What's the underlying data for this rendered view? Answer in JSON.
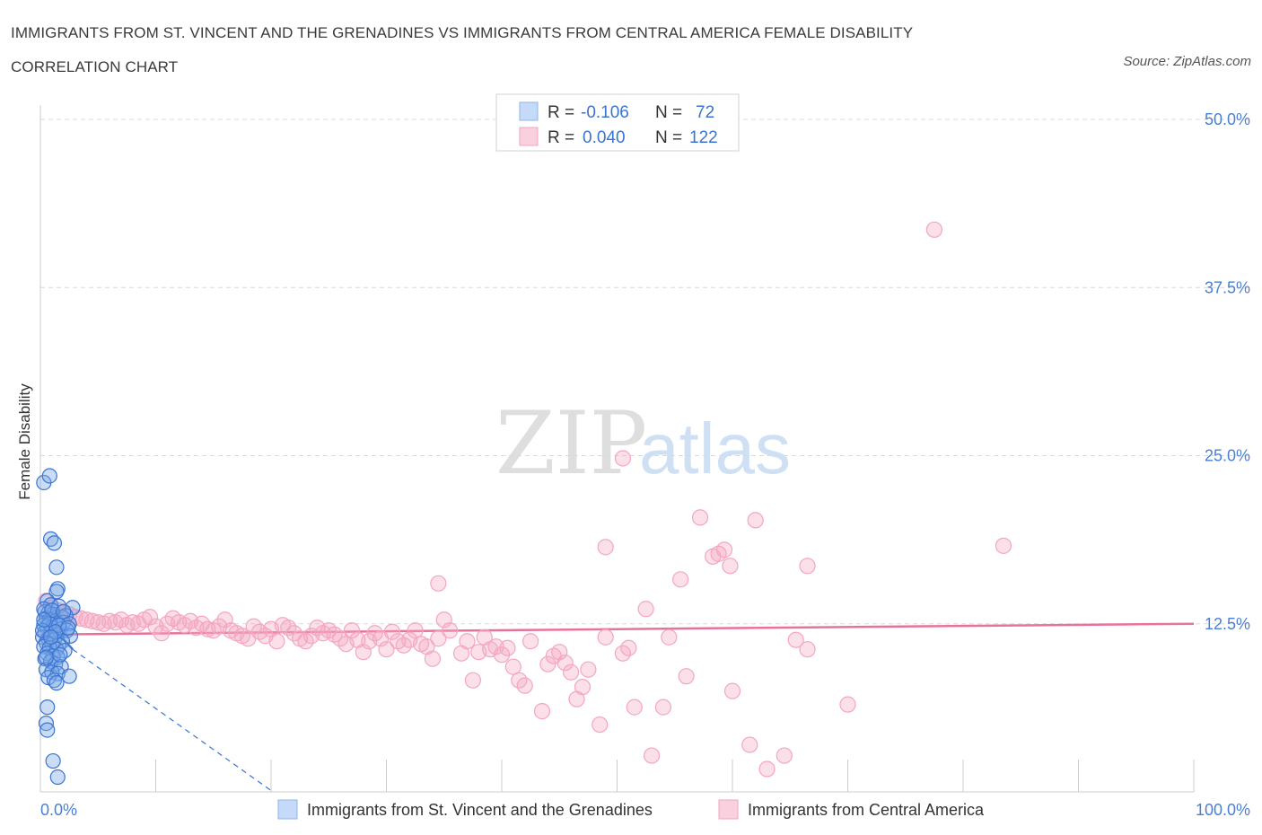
{
  "title": "IMMIGRANTS FROM ST. VINCENT AND THE GRENADINES VS IMMIGRANTS FROM CENTRAL AMERICA FEMALE DISABILITY CORRELATION CHART",
  "source": "Source: ZipAtlas.com",
  "watermark": {
    "zip": "ZIP",
    "atlas": "atlas"
  },
  "legend": {
    "r_label": "R =",
    "n_label": "N =",
    "rows": [
      {
        "r": "-0.106",
        "n": "72",
        "color": "#a9c8f5"
      },
      {
        "r": "0.040",
        "n": "122",
        "color": "#f6b9cc"
      }
    ]
  },
  "chart_data": {
    "type": "scatter",
    "ylabel": "Female Disability",
    "xlim": [
      0,
      100
    ],
    "ylim": [
      0,
      50
    ],
    "x_tick_labels": [
      "0.0%",
      "100.0%"
    ],
    "y_ticks": [
      12.5,
      25.0,
      37.5,
      50.0
    ],
    "y_tick_labels": [
      "12.5%",
      "25.0%",
      "37.5%",
      "50.0%"
    ],
    "grid": "horizontal dashed",
    "series": [
      {
        "name": "Immigrants from St. Vincent and the Grenadines",
        "color": "#7aa7e8",
        "line_color": "#3a74d0",
        "trend": {
          "x": [
            0,
            2.8
          ],
          "y": [
            13.2,
            10.6
          ],
          "dashed_to": [
            20,
            0.1
          ]
        },
        "points": [
          [
            0.3,
            23.0
          ],
          [
            0.8,
            23.5
          ],
          [
            0.9,
            18.8
          ],
          [
            1.2,
            18.5
          ],
          [
            1.4,
            16.7
          ],
          [
            1.5,
            15.1
          ],
          [
            1.4,
            14.9
          ],
          [
            0.6,
            14.2
          ],
          [
            0.9,
            13.9
          ],
          [
            1.6,
            13.8
          ],
          [
            2.8,
            13.7
          ],
          [
            0.4,
            13.4
          ],
          [
            0.7,
            13.3
          ],
          [
            1.1,
            13.2
          ],
          [
            1.8,
            13.0
          ],
          [
            2.2,
            13.1
          ],
          [
            0.5,
            12.9
          ],
          [
            0.8,
            12.8
          ],
          [
            1.3,
            12.7
          ],
          [
            2.0,
            12.6
          ],
          [
            2.5,
            12.5
          ],
          [
            0.3,
            12.4
          ],
          [
            0.6,
            12.3
          ],
          [
            1.0,
            12.2
          ],
          [
            1.7,
            12.1
          ],
          [
            2.3,
            12.0
          ],
          [
            0.4,
            11.9
          ],
          [
            0.9,
            11.8
          ],
          [
            1.5,
            11.7
          ],
          [
            2.6,
            11.6
          ],
          [
            0.2,
            11.5
          ],
          [
            0.7,
            11.4
          ],
          [
            1.2,
            11.3
          ],
          [
            1.9,
            11.2
          ],
          [
            0.5,
            11.1
          ],
          [
            1.0,
            11.0
          ],
          [
            1.6,
            10.9
          ],
          [
            0.3,
            10.8
          ],
          [
            0.8,
            10.7
          ],
          [
            1.4,
            10.6
          ],
          [
            2.1,
            10.5
          ],
          [
            0.6,
            10.3
          ],
          [
            1.1,
            10.1
          ],
          [
            1.5,
            10.0
          ],
          [
            0.4,
            9.9
          ],
          [
            0.9,
            9.7
          ],
          [
            1.3,
            9.5
          ],
          [
            1.8,
            9.3
          ],
          [
            0.5,
            9.1
          ],
          [
            1.0,
            8.9
          ],
          [
            1.5,
            8.8
          ],
          [
            2.5,
            8.6
          ],
          [
            0.7,
            8.5
          ],
          [
            1.2,
            8.3
          ],
          [
            1.4,
            8.1
          ],
          [
            0.6,
            6.3
          ],
          [
            0.5,
            5.1
          ],
          [
            0.6,
            4.6
          ],
          [
            1.1,
            2.3
          ],
          [
            1.5,
            1.1
          ],
          [
            0.3,
            13.6
          ],
          [
            1.0,
            13.5
          ],
          [
            2.0,
            13.4
          ],
          [
            0.8,
            12.5
          ],
          [
            1.6,
            12.4
          ],
          [
            0.2,
            12.0
          ],
          [
            1.3,
            11.9
          ],
          [
            0.9,
            11.5
          ],
          [
            2.4,
            12.2
          ],
          [
            0.5,
            10.0
          ],
          [
            1.7,
            10.2
          ],
          [
            0.3,
            12.8
          ]
        ]
      },
      {
        "name": "Immigrants from Central America",
        "color": "#f4a6bf",
        "line_color": "#e8739a",
        "trend": {
          "x": [
            0,
            100
          ],
          "y": [
            11.7,
            12.5
          ]
        },
        "points": [
          [
            77.5,
            41.8
          ],
          [
            50.5,
            24.8
          ],
          [
            57.2,
            20.4
          ],
          [
            62.0,
            20.2
          ],
          [
            83.5,
            18.3
          ],
          [
            49.0,
            18.2
          ],
          [
            58.3,
            17.5
          ],
          [
            58.8,
            17.7
          ],
          [
            59.3,
            18.0
          ],
          [
            59.8,
            16.8
          ],
          [
            66.5,
            16.8
          ],
          [
            55.5,
            15.8
          ],
          [
            34.5,
            15.5
          ],
          [
            52.5,
            13.6
          ],
          [
            35.0,
            12.8
          ],
          [
            0.5,
            14.2
          ],
          [
            1.0,
            13.7
          ],
          [
            1.5,
            13.5
          ],
          [
            2.0,
            13.3
          ],
          [
            2.5,
            13.2
          ],
          [
            3.0,
            13.0
          ],
          [
            3.5,
            12.9
          ],
          [
            4.0,
            12.8
          ],
          [
            4.5,
            12.7
          ],
          [
            5.0,
            12.6
          ],
          [
            5.5,
            12.5
          ],
          [
            6.0,
            12.7
          ],
          [
            6.5,
            12.6
          ],
          [
            7.0,
            12.8
          ],
          [
            7.5,
            12.4
          ],
          [
            8.0,
            12.6
          ],
          [
            8.5,
            12.5
          ],
          [
            9.0,
            12.8
          ],
          [
            9.5,
            13.0
          ],
          [
            10.0,
            12.3
          ],
          [
            10.5,
            11.8
          ],
          [
            11.0,
            12.5
          ],
          [
            11.5,
            12.9
          ],
          [
            12.0,
            12.6
          ],
          [
            12.5,
            12.4
          ],
          [
            13.0,
            12.7
          ],
          [
            13.5,
            12.2
          ],
          [
            14.0,
            12.5
          ],
          [
            14.5,
            12.1
          ],
          [
            15.0,
            12.0
          ],
          [
            15.5,
            12.3
          ],
          [
            16.0,
            12.8
          ],
          [
            16.5,
            12.0
          ],
          [
            17.0,
            11.8
          ],
          [
            17.5,
            11.6
          ],
          [
            18.0,
            11.4
          ],
          [
            18.5,
            12.3
          ],
          [
            19.0,
            11.9
          ],
          [
            19.5,
            11.6
          ],
          [
            20.0,
            12.1
          ],
          [
            20.5,
            11.2
          ],
          [
            21.0,
            12.4
          ],
          [
            21.5,
            12.2
          ],
          [
            22.0,
            11.8
          ],
          [
            22.5,
            11.4
          ],
          [
            23.0,
            11.2
          ],
          [
            23.5,
            11.6
          ],
          [
            24.0,
            12.2
          ],
          [
            24.5,
            11.8
          ],
          [
            25.0,
            12.0
          ],
          [
            25.5,
            11.7
          ],
          [
            26.0,
            11.4
          ],
          [
            26.5,
            11.0
          ],
          [
            27.0,
            12.0
          ],
          [
            27.5,
            11.3
          ],
          [
            28.0,
            10.4
          ],
          [
            28.5,
            11.2
          ],
          [
            29.0,
            11.8
          ],
          [
            29.5,
            11.4
          ],
          [
            30.0,
            10.6
          ],
          [
            30.5,
            11.9
          ],
          [
            31.0,
            11.2
          ],
          [
            31.5,
            10.9
          ],
          [
            32.0,
            11.3
          ],
          [
            32.5,
            12.0
          ],
          [
            33.0,
            11.0
          ],
          [
            33.5,
            10.8
          ],
          [
            34.0,
            9.9
          ],
          [
            34.5,
            11.4
          ],
          [
            35.5,
            12.0
          ],
          [
            36.5,
            10.3
          ],
          [
            37.0,
            11.2
          ],
          [
            37.5,
            8.3
          ],
          [
            38.0,
            10.4
          ],
          [
            38.5,
            11.5
          ],
          [
            39.0,
            10.6
          ],
          [
            39.5,
            10.8
          ],
          [
            40.0,
            10.2
          ],
          [
            40.5,
            10.7
          ],
          [
            41.0,
            9.3
          ],
          [
            41.5,
            8.3
          ],
          [
            42.0,
            7.9
          ],
          [
            42.5,
            11.2
          ],
          [
            43.5,
            6.0
          ],
          [
            44.0,
            9.5
          ],
          [
            44.5,
            10.1
          ],
          [
            45.0,
            10.4
          ],
          [
            45.5,
            9.6
          ],
          [
            46.0,
            8.9
          ],
          [
            46.5,
            6.9
          ],
          [
            47.0,
            7.8
          ],
          [
            47.5,
            9.1
          ],
          [
            48.5,
            5.0
          ],
          [
            49.0,
            11.5
          ],
          [
            50.5,
            10.3
          ],
          [
            51.0,
            10.7
          ],
          [
            51.5,
            6.3
          ],
          [
            53.0,
            2.7
          ],
          [
            54.0,
            6.3
          ],
          [
            54.5,
            11.5
          ],
          [
            56.0,
            8.6
          ],
          [
            60.0,
            7.5
          ],
          [
            61.5,
            3.5
          ],
          [
            63.0,
            1.7
          ],
          [
            64.5,
            2.7
          ],
          [
            65.5,
            11.3
          ],
          [
            66.5,
            10.6
          ],
          [
            70.0,
            6.5
          ]
        ]
      }
    ]
  }
}
